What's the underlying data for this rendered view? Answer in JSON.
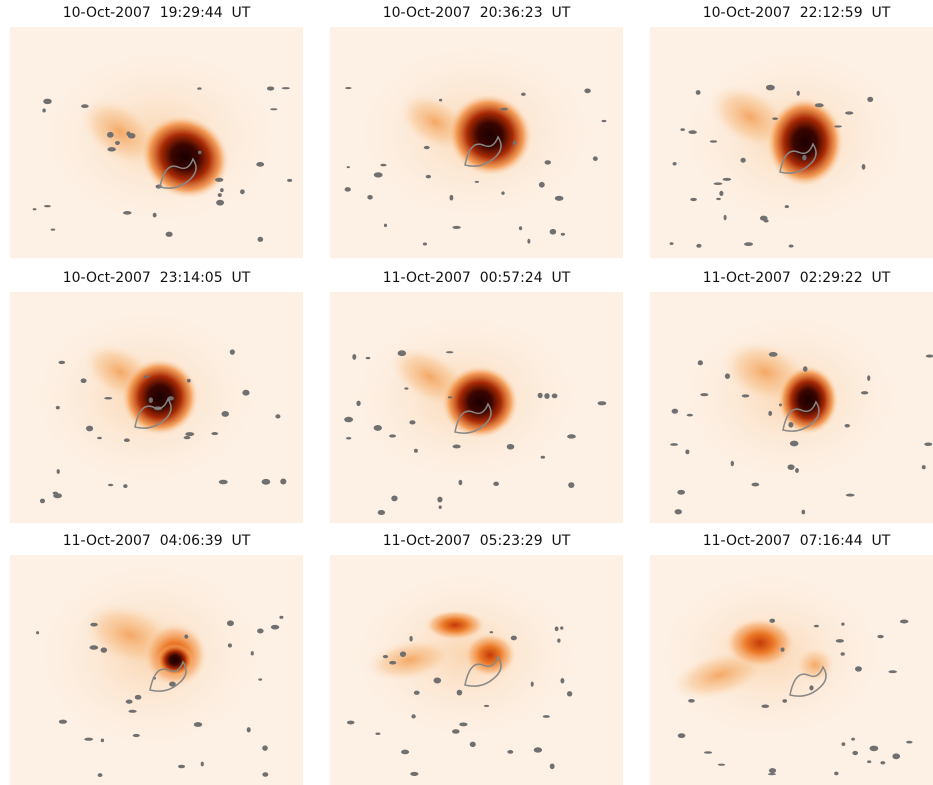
{
  "panels": [
    {
      "title": "10-Oct-2007  19:29:44  UT"
    },
    {
      "title": "10-Oct-2007  20:36:23  UT"
    },
    {
      "title": "10-Oct-2007  22:12:59  UT"
    },
    {
      "title": "10-Oct-2007  23:14:05  UT"
    },
    {
      "title": "11-Oct-2007  00:57:24  UT"
    },
    {
      "title": "11-Oct-2007  02:29:22  UT"
    },
    {
      "title": "11-Oct-2007  04:06:39  UT"
    },
    {
      "title": "11-Oct-2007  05:23:29  UT"
    },
    {
      "title": "11-Oct-2007  07:16:44  UT"
    }
  ]
}
